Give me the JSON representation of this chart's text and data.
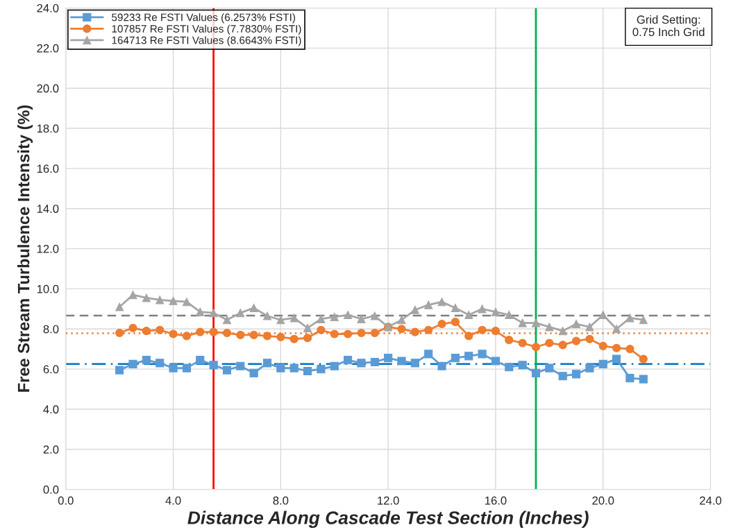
{
  "chart_data": {
    "type": "line",
    "xlabel": "Distance Along Cascade Test Section (Inches)",
    "ylabel": "Free Stream Turbulence Intensity (%)",
    "x": [
      2,
      2.5,
      3,
      3.5,
      4,
      4.5,
      5,
      5.5,
      6,
      6.5,
      7,
      7.5,
      8,
      8.5,
      9,
      9.5,
      10,
      10.5,
      11,
      11.5,
      12,
      12.5,
      13,
      13.5,
      14,
      14.5,
      15,
      15.5,
      16,
      16.5,
      17,
      17.5,
      18,
      18.5,
      19,
      19.5,
      20,
      20.5,
      21,
      21.5
    ],
    "series": [
      {
        "name": "59233 Re FSTI Values (6.2573% FSTI)",
        "color": "#5b9bd5",
        "marker": "square",
        "values": [
          5.95,
          6.25,
          6.45,
          6.3,
          6.05,
          6.05,
          6.45,
          6.2,
          5.95,
          6.15,
          5.8,
          6.3,
          6.05,
          6.05,
          5.9,
          6.0,
          6.15,
          6.45,
          6.3,
          6.35,
          6.55,
          6.4,
          6.3,
          6.75,
          6.15,
          6.55,
          6.65,
          6.75,
          6.4,
          6.1,
          6.2,
          5.8,
          6.05,
          5.65,
          5.75,
          6.05,
          6.25,
          6.5,
          5.55,
          5.5
        ]
      },
      {
        "name": "107857 Re FSTI Values (7.7830% FSTI)",
        "color": "#ed7d31",
        "marker": "circle",
        "values": [
          7.8,
          8.05,
          7.9,
          7.95,
          7.75,
          7.65,
          7.85,
          7.85,
          7.8,
          7.7,
          7.7,
          7.65,
          7.6,
          7.5,
          7.55,
          7.95,
          7.75,
          7.75,
          7.8,
          7.8,
          8.1,
          8.0,
          7.85,
          7.95,
          8.25,
          8.35,
          7.65,
          7.95,
          7.9,
          7.45,
          7.3,
          7.1,
          7.3,
          7.2,
          7.4,
          7.5,
          7.15,
          7.05,
          7.0,
          6.5
        ]
      },
      {
        "name": "164713 Re FSTI Values (8.6643% FSTI)",
        "color": "#a5a5a5",
        "marker": "triangle",
        "values": [
          9.1,
          9.7,
          9.55,
          9.45,
          9.4,
          9.35,
          8.85,
          8.8,
          8.45,
          8.8,
          9.05,
          8.65,
          8.45,
          8.55,
          8.05,
          8.5,
          8.6,
          8.7,
          8.5,
          8.65,
          8.1,
          8.45,
          8.95,
          9.2,
          9.35,
          9.05,
          8.7,
          9.0,
          8.85,
          8.7,
          8.3,
          8.3,
          8.1,
          7.9,
          8.25,
          8.1,
          8.7,
          8.0,
          8.55,
          8.45
        ]
      }
    ],
    "ref_lines": [
      {
        "axis": "y",
        "value": 6.2573,
        "color": "#0070c0",
        "line_style": "dashdot"
      },
      {
        "axis": "y",
        "value": 7.783,
        "color": "#ed7d31",
        "line_style": "dotted"
      },
      {
        "axis": "y",
        "value": 8.6643,
        "color": "#7f7f7f",
        "line_style": "dashed"
      },
      {
        "axis": "x",
        "value": 5.5,
        "color": "#ff0000",
        "line_style": "solid"
      },
      {
        "axis": "x",
        "value": 17.5,
        "color": "#00b050",
        "line_style": "solid"
      }
    ],
    "annotations": [
      "Grid Setting:\n0.75 Inch Grid"
    ],
    "xlim": [
      0,
      24
    ],
    "ylim": [
      0,
      24
    ],
    "xticks": [
      {
        "value": 0,
        "label": "0.0"
      },
      {
        "value": 4,
        "label": "4.0"
      },
      {
        "value": 8,
        "label": "8.0"
      },
      {
        "value": 12,
        "label": "12.0"
      },
      {
        "value": 16,
        "label": "16.0"
      },
      {
        "value": 20,
        "label": "20.0"
      },
      {
        "value": 24,
        "label": "24.0"
      }
    ],
    "yticks": [
      {
        "value": 0,
        "label": "0.0"
      },
      {
        "value": 2,
        "label": "2.0"
      },
      {
        "value": 4,
        "label": "4.0"
      },
      {
        "value": 6,
        "label": "6.0"
      },
      {
        "value": 8,
        "label": "8.0"
      },
      {
        "value": 10,
        "label": "10.0"
      },
      {
        "value": 12,
        "label": "12.0"
      },
      {
        "value": 14,
        "label": "14.0"
      },
      {
        "value": 16,
        "label": "16.0"
      },
      {
        "value": 18,
        "label": "18.0"
      },
      {
        "value": 20,
        "label": "20.0"
      },
      {
        "value": 22,
        "label": "22.0"
      },
      {
        "value": 24,
        "label": "24.0"
      }
    ],
    "grid": true,
    "legend": "top left",
    "line_style": "solid"
  }
}
